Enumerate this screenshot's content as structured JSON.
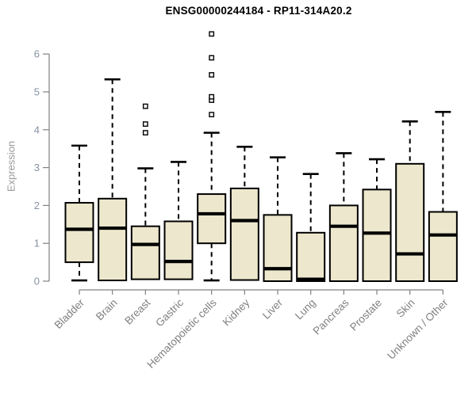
{
  "page": {
    "background": "#FFFFFF"
  },
  "chart_data": {
    "type": "boxplot",
    "title": "ENSG00000244184 - RP11-314A20.2",
    "ylabel": "Expression",
    "xlabel": "",
    "ylim": [
      0,
      6.6
    ],
    "yticks": [
      0,
      1,
      2,
      3,
      4,
      5,
      6
    ],
    "grid": false,
    "legend": false,
    "categories": [
      "Bladder",
      "Brain",
      "Breast",
      "Gastric",
      "Hematopoietic cells",
      "Kidney",
      "Liver",
      "Lung",
      "Pancreas",
      "Prostate",
      "Skin",
      "Unknown / Other"
    ],
    "boxes": [
      {
        "name": "Bladder",
        "whislo": 0.02,
        "q1": 0.5,
        "med": 1.37,
        "q3": 2.07,
        "whishi": 3.58,
        "outliers": []
      },
      {
        "name": "Brain",
        "whislo": 0.02,
        "q1": 0.02,
        "med": 1.4,
        "q3": 2.18,
        "whishi": 5.33,
        "outliers": []
      },
      {
        "name": "Breast",
        "whislo": 0.05,
        "q1": 0.05,
        "med": 0.97,
        "q3": 1.45,
        "whishi": 2.98,
        "outliers": [
          3.92,
          4.15,
          4.62
        ]
      },
      {
        "name": "Gastric",
        "whislo": 0.05,
        "q1": 0.05,
        "med": 0.52,
        "q3": 1.58,
        "whishi": 3.15,
        "outliers": []
      },
      {
        "name": "Hematopoietic cells",
        "whislo": 0.02,
        "q1": 1.0,
        "med": 1.78,
        "q3": 2.3,
        "whishi": 3.92,
        "outliers": [
          4.4,
          4.78,
          4.87,
          5.45,
          5.9,
          6.53
        ]
      },
      {
        "name": "Kidney",
        "whislo": 0.03,
        "q1": 0.03,
        "med": 1.6,
        "q3": 2.45,
        "whishi": 3.55,
        "outliers": []
      },
      {
        "name": "Liver",
        "whislo": 0.0,
        "q1": 0.0,
        "med": 0.33,
        "q3": 1.75,
        "whishi": 3.27,
        "outliers": []
      },
      {
        "name": "Lung",
        "whislo": 0.0,
        "q1": 0.0,
        "med": 0.05,
        "q3": 1.28,
        "whishi": 2.83,
        "outliers": []
      },
      {
        "name": "Pancreas",
        "whislo": 0.0,
        "q1": 0.0,
        "med": 1.45,
        "q3": 2.0,
        "whishi": 3.38,
        "outliers": []
      },
      {
        "name": "Prostate",
        "whislo": 0.0,
        "q1": 0.0,
        "med": 1.27,
        "q3": 2.42,
        "whishi": 3.22,
        "outliers": []
      },
      {
        "name": "Skin",
        "whislo": 0.0,
        "q1": 0.0,
        "med": 0.72,
        "q3": 3.1,
        "whishi": 4.22,
        "outliers": []
      },
      {
        "name": "Unknown / Other",
        "whislo": 0.0,
        "q1": 0.0,
        "med": 1.22,
        "q3": 1.83,
        "whishi": 4.47,
        "outliers": []
      }
    ],
    "colors": {
      "box_fill": "#EDE7CD",
      "box_stroke": "#000000",
      "median_color": "#000000",
      "outlier_fill": "#FFFFFF",
      "axis_color": "#808080",
      "ytick_label_color": "#8691A2",
      "xtick_label_color": "#808080",
      "ylabel_color": "#999999",
      "title_color": "#000000"
    }
  }
}
